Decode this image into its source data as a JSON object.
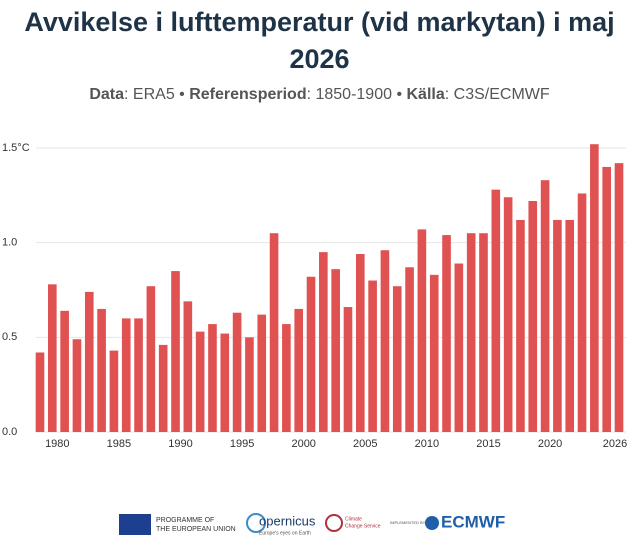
{
  "chart_data": {
    "type": "bar",
    "title": "Avvikelse i lufttemperatur (vid markytan) i maj 2026",
    "subtitle": [
      "Data",
      ": ERA5 • ",
      "Referensperiod",
      ": 1850-1900 • ",
      "Källa",
      ": C3S/ECMWF"
    ],
    "categories": [
      null,
      "1980",
      null,
      null,
      null,
      null,
      "1985",
      null,
      null,
      null,
      null,
      "1990",
      null,
      null,
      null,
      null,
      "1995",
      null,
      null,
      null,
      null,
      "2000",
      null,
      null,
      null,
      null,
      "2005",
      null,
      null,
      null,
      null,
      "2010",
      null,
      null,
      null,
      null,
      "2015",
      null,
      null,
      null,
      null,
      "2020",
      null,
      null,
      null,
      null,
      null,
      "2026"
    ],
    "values": [
      0.42,
      0.78,
      0.64,
      0.49,
      0.74,
      0.65,
      0.43,
      0.6,
      0.6,
      0.77,
      0.46,
      0.85,
      0.69,
      0.53,
      0.57,
      0.52,
      0.63,
      0.5,
      0.62,
      1.05,
      0.57,
      0.65,
      0.82,
      0.95,
      0.86,
      0.66,
      0.94,
      0.8,
      0.96,
      0.77,
      0.87,
      1.07,
      0.83,
      1.04,
      0.89,
      1.05,
      1.05,
      1.28,
      1.24,
      1.12,
      1.22,
      1.33,
      1.12,
      1.12,
      1.26,
      1.52,
      1.4,
      1.42
    ],
    "color": "#e05252",
    "ylim": [
      0,
      1.55
    ],
    "yticks": [
      {
        "value": 0,
        "label": "0.0"
      },
      0.5,
      {
        "value": 1,
        "label": "1.0"
      },
      {
        "value": 1.5,
        "label": "1.5°C"
      }
    ],
    "grid": true
  },
  "footer": {
    "eu": [
      "PROGRAMME OF",
      "THE EUROPEAN UNION"
    ],
    "copernicus": "opernicus",
    "copernicus_sub": "Europe's eyes on Earth",
    "c3s": [
      "Climate",
      "Change Service"
    ],
    "implemented": "IMPLEMENTED BY",
    "ecmwf": "ECMWF"
  }
}
